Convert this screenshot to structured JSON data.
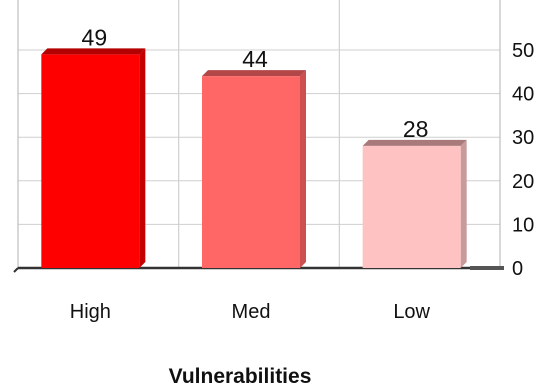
{
  "chart_data": {
    "type": "bar",
    "categories": [
      "High",
      "Med",
      "Low"
    ],
    "values": [
      49,
      44,
      28
    ],
    "xlabel": "Vulnerabilities",
    "ylabel": "",
    "ylim": [
      0,
      50
    ],
    "yticks": [
      0,
      10,
      20,
      30,
      40,
      50
    ],
    "y_axis_side": "right",
    "grid": true,
    "data_labels": [
      "49",
      "44",
      "28"
    ],
    "colors": [
      "#ff0000",
      "#ff6666",
      "#ffc2c2"
    ],
    "top_colors": [
      "#b30000",
      "#b34646",
      "#a87a7a"
    ],
    "side_colors": [
      "#c40000",
      "#cc5050",
      "#c99a9a"
    ],
    "style": "3d-bar"
  }
}
